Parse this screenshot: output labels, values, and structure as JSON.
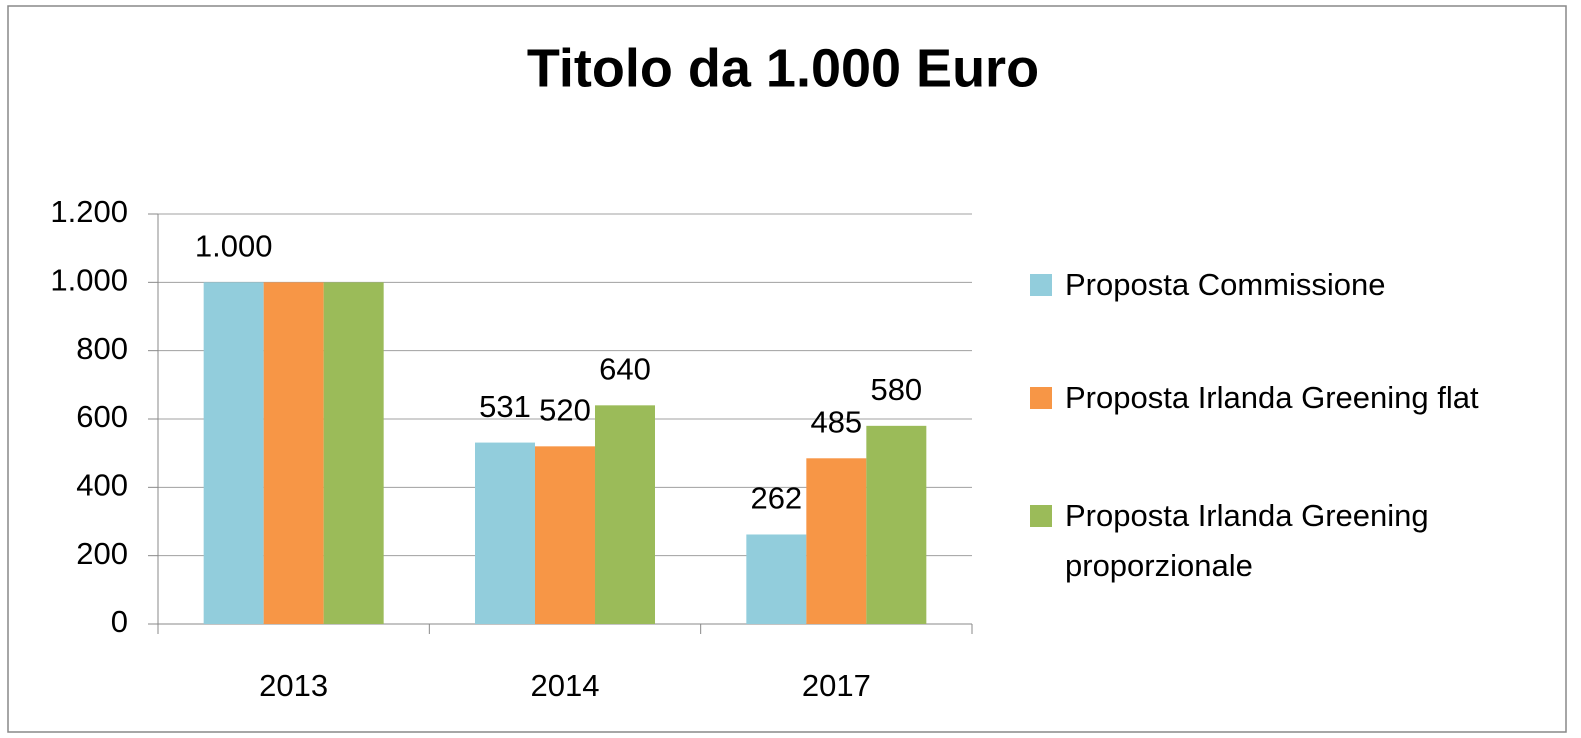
{
  "chart_data": {
    "type": "bar",
    "title": "Titolo da 1.000 Euro",
    "categories": [
      "2013",
      "2014",
      "2017"
    ],
    "series": [
      {
        "name": "Proposta Commissione",
        "color": "#92cddc",
        "values": [
          1000,
          531,
          262
        ],
        "value_labels": [
          "1.000",
          "531",
          "262"
        ]
      },
      {
        "name": "Proposta Irlanda Greening flat",
        "color": "#f79646",
        "values": [
          1000,
          520,
          485
        ],
        "value_labels": [
          null,
          "520",
          "485"
        ]
      },
      {
        "name": "Proposta Irlanda Greening proporzionale",
        "color": "#9bbb59",
        "values": [
          1000,
          640,
          580
        ],
        "value_labels": [
          null,
          "640",
          "580"
        ]
      }
    ],
    "ylim": [
      0,
      1200
    ],
    "yticks": [
      0,
      200,
      400,
      600,
      800,
      {
        "value": 1000,
        "label": "1.000"
      },
      {
        "value": 1200,
        "label": "1.200"
      }
    ],
    "grid": true,
    "legend": "right"
  }
}
